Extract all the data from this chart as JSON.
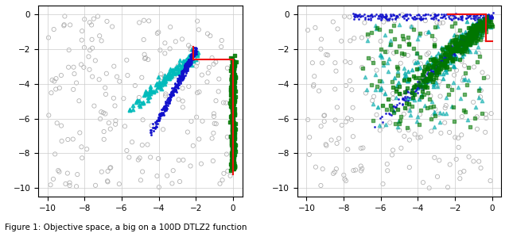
{
  "xlim": [
    -10.5,
    0.5
  ],
  "ylim": [
    -10.5,
    0.5
  ],
  "xticks": [
    -10,
    -8,
    -6,
    -4,
    -2,
    0
  ],
  "yticks": [
    -10,
    -8,
    -6,
    -4,
    -2,
    0
  ],
  "bg_color": "#ffffff",
  "grid_color": "#cccccc",
  "gray_color": "#aaaaaa",
  "pareto_front_color": "#ee1111",
  "left_blue_color": "#1111cc",
  "left_cyan_color": "#00bbbb",
  "left_green_color": "#007700",
  "right_blue_color": "#1111cc",
  "right_cyan_color": "#00aaaa",
  "right_green_color": "#007700",
  "figsize": [
    6.4,
    2.99
  ],
  "dpi": 100
}
